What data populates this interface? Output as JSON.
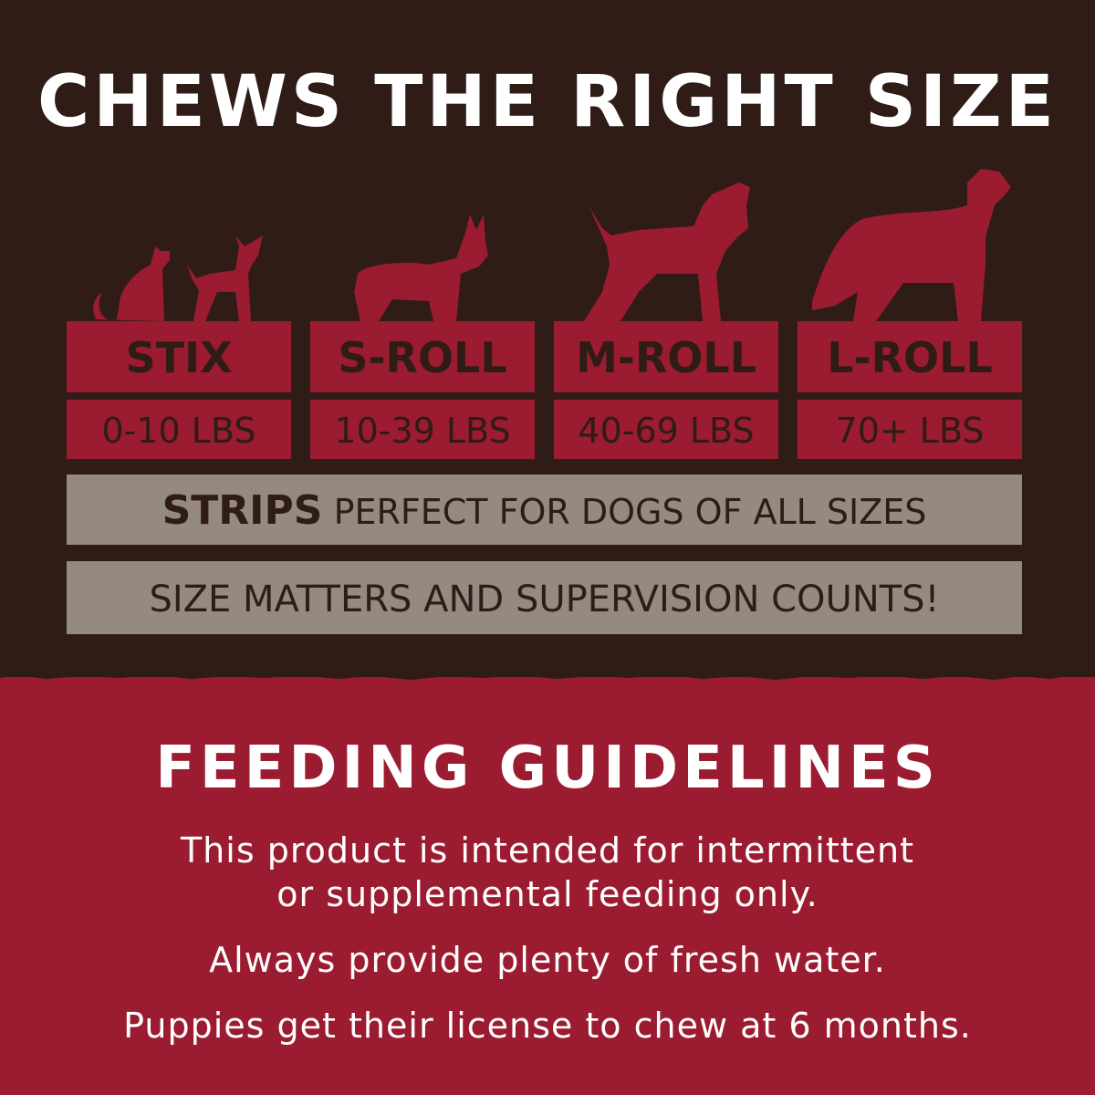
{
  "colors": {
    "background_top": "#2f1c16",
    "accent_red": "#9b1b30",
    "gray_bar": "#958a82",
    "text_light": "#ffffff"
  },
  "title": "CHEWS THE RIGHT SIZE",
  "sizes": [
    {
      "name": "STIX",
      "weight": "0-10 LBS",
      "icon": "cat-and-small-dog-silhouette"
    },
    {
      "name": "S-ROLL",
      "weight": "10-39 LBS",
      "icon": "corgi-silhouette"
    },
    {
      "name": "M-ROLL",
      "weight": "40-69 LBS",
      "icon": "medium-dog-silhouette"
    },
    {
      "name": "L-ROLL",
      "weight": "70+ LBS",
      "icon": "large-dog-silhouette"
    }
  ],
  "strips": {
    "name": "STRIPS",
    "text": "PERFECT FOR DOGS OF ALL SIZES"
  },
  "supervision": "SIZE MATTERS AND SUPERVISION COUNTS!",
  "feeding": {
    "title": "FEEDING GUIDELINES",
    "lines": [
      "This product is intended for intermittent",
      "or supplemental feeding only.",
      "Always provide plenty of fresh water.",
      "Puppies get their license to chew at 6 months."
    ]
  }
}
